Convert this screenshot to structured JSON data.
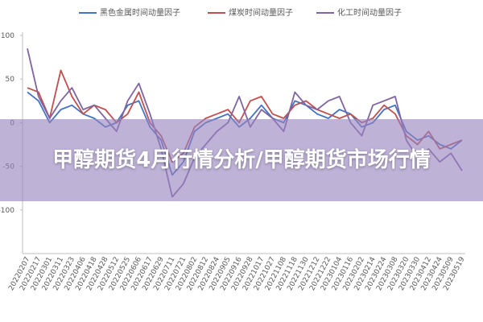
{
  "chart_data": {
    "type": "line",
    "categories": [
      "20220207",
      "20220217",
      "20220301",
      "20220311",
      "20220323",
      "20220406",
      "20220418",
      "20220428",
      "20220512",
      "20220525",
      "20220606",
      "20220617",
      "20220629",
      "20220711",
      "20220721",
      "20220802",
      "20220812",
      "20220824",
      "20220905",
      "20220916",
      "20220928",
      "20221017",
      "20221027",
      "20221108",
      "20221118",
      "20221130",
      "20221212",
      "20221222",
      "20230104",
      "20230116",
      "20230202",
      "20230214",
      "20230224",
      "20230308",
      "20230320",
      "20230330",
      "20230412",
      "20230424",
      "20230509",
      "20230519"
    ],
    "series": [
      {
        "name": "黑色金属时间动量因子",
        "color": "#4472c4",
        "values": [
          35,
          25,
          0,
          15,
          20,
          10,
          5,
          -5,
          0,
          20,
          25,
          -5,
          -20,
          -60,
          -45,
          -10,
          0,
          5,
          10,
          -5,
          5,
          20,
          5,
          0,
          25,
          20,
          10,
          5,
          15,
          10,
          -5,
          0,
          15,
          20,
          -10,
          -20,
          -15,
          -25,
          -30,
          -20
        ]
      },
      {
        "name": "煤炭时间动量因子",
        "color": "#c0504d",
        "values": [
          40,
          35,
          5,
          60,
          30,
          10,
          20,
          15,
          0,
          10,
          35,
          0,
          -15,
          -45,
          -35,
          -5,
          5,
          10,
          15,
          0,
          25,
          30,
          10,
          5,
          20,
          25,
          15,
          10,
          5,
          10,
          0,
          5,
          20,
          10,
          -15,
          -25,
          -10,
          -30,
          -25,
          -20
        ]
      },
      {
        "name": "化工时间动量因子",
        "color": "#8064a2",
        "values": [
          85,
          30,
          5,
          25,
          40,
          15,
          20,
          5,
          -10,
          25,
          45,
          10,
          -30,
          -85,
          -70,
          -40,
          -25,
          -10,
          0,
          30,
          -5,
          15,
          5,
          -10,
          35,
          20,
          15,
          25,
          30,
          0,
          -15,
          20,
          25,
          30,
          -20,
          -40,
          -30,
          -45,
          -35,
          -55
        ]
      }
    ],
    "ylim": [
      -150,
      100
    ],
    "yticks": [
      -100,
      -50,
      0,
      50,
      100
    ],
    "grid": false,
    "legend": "top"
  },
  "banner": {
    "title": "甲醇期货4月行情分析/甲醇期货市场行情"
  }
}
